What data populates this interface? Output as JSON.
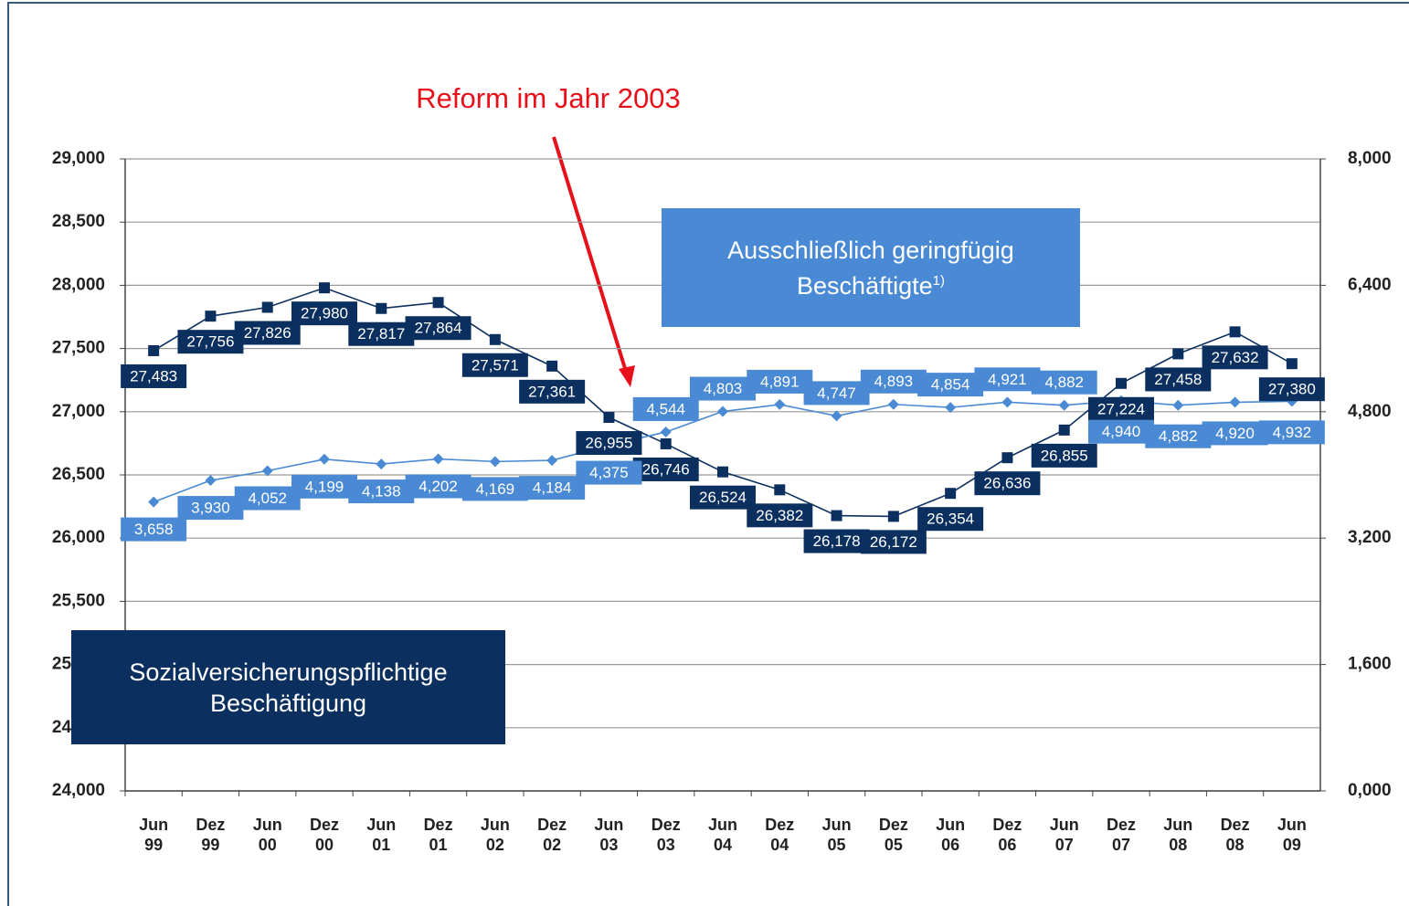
{
  "chart_data": {
    "type": "line",
    "annotation": "Reform im Jahr 2003",
    "categories": [
      [
        "Jun",
        "99"
      ],
      [
        "Dez",
        "99"
      ],
      [
        "Jun",
        "00"
      ],
      [
        "Dez",
        "00"
      ],
      [
        "Jun",
        "01"
      ],
      [
        "Dez",
        "01"
      ],
      [
        "Jun",
        "02"
      ],
      [
        "Dez",
        "02"
      ],
      [
        "Jun",
        "03"
      ],
      [
        "Dez",
        "03"
      ],
      [
        "Jun",
        "04"
      ],
      [
        "Dez",
        "04"
      ],
      [
        "Jun",
        "05"
      ],
      [
        "Dez",
        "05"
      ],
      [
        "Jun",
        "06"
      ],
      [
        "Dez",
        "06"
      ],
      [
        "Jun",
        "07"
      ],
      [
        "Dez",
        "07"
      ],
      [
        "Jun",
        "08"
      ],
      [
        "Dez",
        "08"
      ],
      [
        "Jun",
        "09"
      ]
    ],
    "ylim": [
      24000,
      29000
    ],
    "yticks": [
      {
        "value": 24000,
        "label": "24,000"
      },
      {
        "value": 24500,
        "label": "24,500"
      },
      {
        "value": 25000,
        "label": "25,000"
      },
      {
        "value": 25500,
        "label": "25,500"
      },
      {
        "value": 26000,
        "label": "26,000"
      },
      {
        "value": 26500,
        "label": "26,500"
      },
      {
        "value": 27000,
        "label": "27,000"
      },
      {
        "value": 27500,
        "label": "27,500"
      },
      {
        "value": 28000,
        "label": "28,000"
      },
      {
        "value": 28500,
        "label": "28,500"
      },
      {
        "value": 29000,
        "label": "29,000"
      }
    ],
    "y2lim": [
      0,
      8000
    ],
    "y2ticks": [
      {
        "value": 0,
        "label": "0,000"
      },
      {
        "value": 1600,
        "label": "1,600"
      },
      {
        "value": 3200,
        "label": "3,200"
      },
      {
        "value": 4800,
        "label": "4,800"
      },
      {
        "value": 6400,
        "label": "6,400"
      },
      {
        "value": 8000,
        "label": "8,000"
      }
    ],
    "grid": true,
    "series": [
      {
        "name": "Sozialversicherungspflichtige Beschäftigung",
        "color": "#0b2f5e",
        "marker": "square",
        "values": [
          27483,
          27756,
          27826,
          27980,
          27817,
          27864,
          27571,
          27361,
          26955,
          26746,
          26524,
          26382,
          26178,
          26172,
          26354,
          26636,
          26855,
          27224,
          27458,
          27632,
          27380
        ],
        "value_labels": [
          "27,483",
          "27,756",
          "27,826",
          "27,980",
          "27,817",
          "27,864",
          "27,571",
          "27,361",
          "26,955",
          "26,746",
          "26,524",
          "26,382",
          "26,178",
          "26,172",
          "26,354",
          "26,636",
          "26,855",
          "27,224",
          "27,458",
          "27,632",
          "27,380"
        ]
      },
      {
        "name": "Ausschließlich geringfügig Beschäftigte",
        "name_note": "1)",
        "color": "#4a8ad4",
        "marker": "diamond",
        "axis": "y2",
        "values": [
          3658,
          3930,
          4052,
          4199,
          4138,
          4202,
          4169,
          4184,
          4375,
          4544,
          4803,
          4891,
          4747,
          4893,
          4854,
          4921,
          4882,
          4940,
          4882,
          4920,
          4932
        ],
        "value_labels": [
          "3,658",
          "3,930",
          "4,052",
          "4,199",
          "4,138",
          "4,202",
          "4,169",
          "4,184",
          "4,375",
          "4,544",
          "4,803",
          "4,891",
          "4,747",
          "4,893",
          "4,854",
          "4,921",
          "4,882",
          "4,940",
          "4,882",
          "4,920",
          "4,932"
        ]
      }
    ]
  }
}
